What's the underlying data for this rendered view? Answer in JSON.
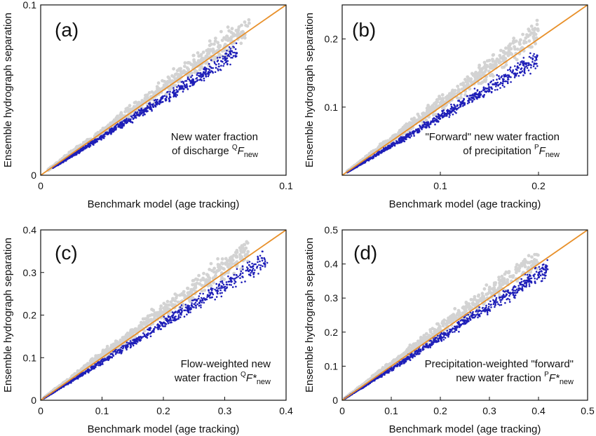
{
  "colors": {
    "reference": "#e8902a",
    "highlight": "#1f1fb8",
    "background_points": "#d3d3d3",
    "frame": "#111111"
  },
  "chart_data": [
    {
      "type": "scatter",
      "panel": "(a)",
      "xlabel": "Benchmark model (age tracking)",
      "ylabel": "Ensemble hydrograph separation",
      "xlim": [
        0,
        0.1
      ],
      "ylim": [
        0,
        0.1
      ],
      "xticks": [
        0,
        0.1
      ],
      "yticks": [
        0,
        0.1
      ],
      "annotation": [
        "New water fraction",
        "of discharge ",
        "Q",
        "F",
        "new"
      ],
      "reference_line": {
        "x": [
          0,
          0.1
        ],
        "y": [
          0,
          0.1
        ]
      },
      "series": [
        {
          "color": "#d3d3d3",
          "x_range": [
            0.003,
            0.085
          ],
          "slope": 1.03,
          "spread": 0.13
        },
        {
          "color": "#1f1fb8",
          "x_range": [
            0.005,
            0.08
          ],
          "slope": 0.9,
          "spread": 0.1
        }
      ]
    },
    {
      "type": "scatter",
      "panel": "(b)",
      "xlabel": "Benchmark model (age tracking)",
      "ylabel": "Ensemble hydrograph separation",
      "xlim": [
        0,
        0.25
      ],
      "ylim": [
        0,
        0.25
      ],
      "xticks": [
        0.1,
        0.2
      ],
      "yticks": [
        0.1,
        0.2
      ],
      "annotation": [
        "\"Forward\" new water fraction",
        "of precipitation ",
        "P",
        "F",
        "new"
      ],
      "reference_line": {
        "x": [
          0,
          0.25
        ],
        "y": [
          0,
          0.25
        ]
      },
      "series": [
        {
          "color": "#d3d3d3",
          "x_range": [
            0.005,
            0.2
          ],
          "slope": 1.05,
          "spread": 0.14
        },
        {
          "color": "#1f1fb8",
          "x_range": [
            0.005,
            0.2
          ],
          "slope": 0.86,
          "spread": 0.11
        }
      ]
    },
    {
      "type": "scatter",
      "panel": "(c)",
      "xlabel": "Benchmark model (age tracking)",
      "ylabel": "Ensemble hydrograph separation",
      "xlim": [
        0,
        0.4
      ],
      "ylim": [
        0,
        0.4
      ],
      "xticks": [
        0,
        0.1,
        0.2,
        0.3,
        0.4
      ],
      "yticks": [
        0,
        0.1,
        0.2,
        0.3,
        0.4
      ],
      "annotation": [
        "Flow-weighted new",
        "water fraction ",
        "Q",
        "F*",
        "new"
      ],
      "reference_line": {
        "x": [
          0,
          0.4
        ],
        "y": [
          0,
          0.4
        ]
      },
      "series": [
        {
          "color": "#d3d3d3",
          "x_range": [
            0.005,
            0.34
          ],
          "slope": 1.05,
          "spread": 0.13
        },
        {
          "color": "#1f1fb8",
          "x_range": [
            0.005,
            0.37
          ],
          "slope": 0.9,
          "spread": 0.1
        }
      ]
    },
    {
      "type": "scatter",
      "panel": "(d)",
      "xlabel": "Benchmark model (age tracking)",
      "ylabel": "Ensemble hydrograph separation",
      "xlim": [
        0,
        0.5
      ],
      "ylim": [
        0,
        0.5
      ],
      "xticks": [
        0,
        0.1,
        0.2,
        0.3,
        0.4,
        0.5
      ],
      "yticks": [
        0,
        0.1,
        0.2,
        0.3,
        0.4,
        0.5
      ],
      "annotation": [
        "Precipitation-weighted \"forward\"",
        "new water fraction ",
        "P",
        "F*",
        "new"
      ],
      "reference_line": {
        "x": [
          0,
          0.5
        ],
        "y": [
          0,
          0.5
        ]
      },
      "series": [
        {
          "color": "#d3d3d3",
          "x_range": [
            0.005,
            0.4
          ],
          "slope": 1.05,
          "spread": 0.13
        },
        {
          "color": "#1f1fb8",
          "x_range": [
            0.005,
            0.42
          ],
          "slope": 0.92,
          "spread": 0.1
        }
      ]
    }
  ]
}
